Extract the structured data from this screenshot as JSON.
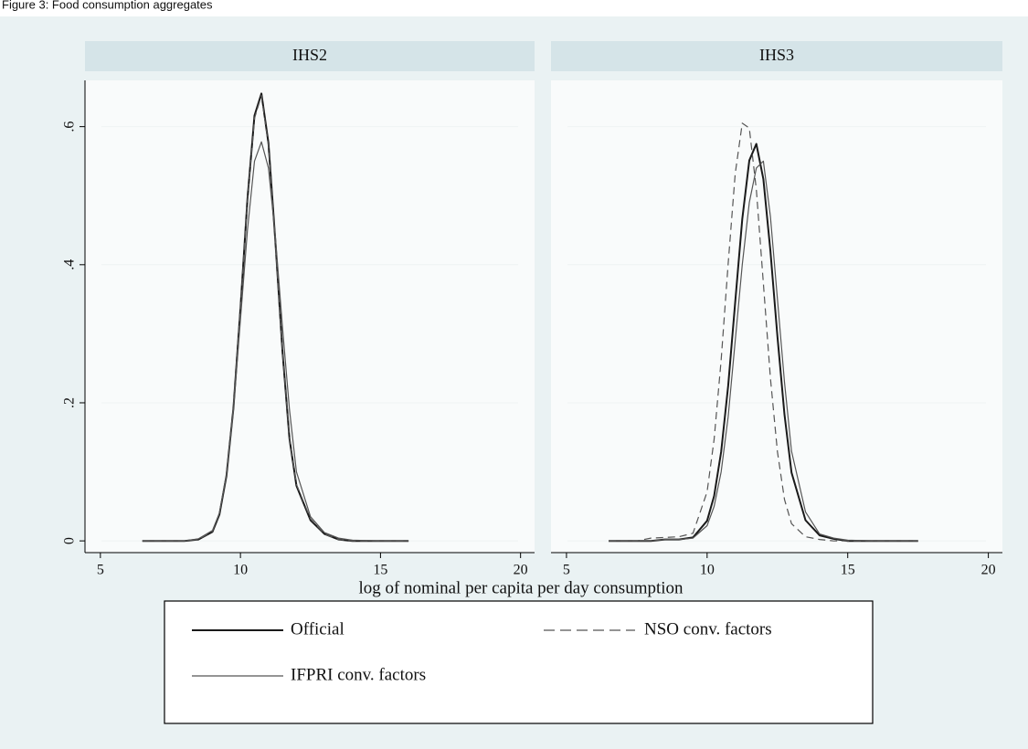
{
  "caption": "Figure 3: Food consumption aggregates",
  "x_label": "log of nominal per capita per day consumption",
  "chart_data": [
    {
      "type": "line",
      "title": "IHS2",
      "x": [
        6.5,
        7,
        7.5,
        8,
        8.5,
        9,
        9.25,
        9.5,
        9.75,
        10,
        10.25,
        10.5,
        10.75,
        11,
        11.25,
        11.5,
        11.75,
        12,
        12.5,
        13,
        13.5,
        14,
        15,
        16
      ],
      "series": [
        {
          "name": "Official",
          "color": "#1a1a1a",
          "width": 2,
          "dashed": false,
          "values": [
            0,
            0,
            0,
            0,
            0.002,
            0.013,
            0.038,
            0.094,
            0.193,
            0.336,
            0.495,
            0.616,
            0.648,
            0.576,
            0.433,
            0.275,
            0.148,
            0.08,
            0.03,
            0.01,
            0.002,
            0,
            0,
            0
          ]
        },
        {
          "name": "IFPRI conv. factors",
          "color": "#555555",
          "width": 1.2,
          "dashed": false,
          "values": [
            0,
            0,
            0,
            0,
            0.003,
            0.015,
            0.04,
            0.095,
            0.19,
            0.32,
            0.45,
            0.55,
            0.578,
            0.54,
            0.44,
            0.31,
            0.19,
            0.1,
            0.035,
            0.012,
            0.004,
            0.001,
            0,
            0
          ]
        },
        {
          "name": "NSO conv. factors",
          "color": "#555555",
          "width": 1.2,
          "dashed": true,
          "values": [
            0,
            0,
            0,
            0,
            0.002,
            0.014,
            0.04,
            0.097,
            0.196,
            0.338,
            0.494,
            0.612,
            0.645,
            0.572,
            0.43,
            0.274,
            0.15,
            0.082,
            0.032,
            0.01,
            0.002,
            0,
            0,
            0
          ]
        }
      ],
      "xlim": [
        4.45,
        20.5
      ],
      "xticks": [
        5,
        10,
        15,
        20
      ],
      "ylim": [
        -0.017,
        0.667
      ],
      "yticks": [
        0,
        {
          "value": 0.2,
          "label": ".2"
        },
        {
          "value": 0.4,
          "label": ".4"
        },
        {
          "value": 0.6,
          "label": ".6"
        }
      ],
      "grid": true
    },
    {
      "type": "line",
      "title": "IHS3",
      "x": [
        6.5,
        7,
        7.5,
        8,
        8.5,
        9,
        9.5,
        10,
        10.25,
        10.5,
        10.75,
        11,
        11.25,
        11.5,
        11.75,
        12,
        12.25,
        12.5,
        12.75,
        13,
        13.5,
        14,
        14.5,
        15,
        16,
        17.5
      ],
      "series": [
        {
          "name": "Official",
          "color": "#1a1a1a",
          "width": 2,
          "dashed": false,
          "values": [
            0,
            0,
            0,
            0,
            0.002,
            0.002,
            0.005,
            0.029,
            0.065,
            0.129,
            0.225,
            0.346,
            0.466,
            0.551,
            0.575,
            0.524,
            0.42,
            0.296,
            0.183,
            0.099,
            0.03,
            0.008,
            0.003,
            0,
            0,
            0
          ]
        },
        {
          "name": "IFPRI conv. factors",
          "color": "#555555",
          "width": 1.2,
          "dashed": false,
          "values": [
            0,
            0,
            0,
            0,
            0.002,
            0.002,
            0.004,
            0.022,
            0.05,
            0.1,
            0.18,
            0.29,
            0.4,
            0.49,
            0.54,
            0.55,
            0.47,
            0.35,
            0.23,
            0.13,
            0.042,
            0.01,
            0.004,
            0.001,
            0,
            0
          ]
        },
        {
          "name": "NSO conv. factors",
          "color": "#555555",
          "width": 1.2,
          "dashed": true,
          "values": [
            0,
            0,
            0,
            0.004,
            0.005,
            0.006,
            0.011,
            0.071,
            0.147,
            0.262,
            0.402,
            0.532,
            0.605,
            0.598,
            0.509,
            0.373,
            0.236,
            0.129,
            0.06,
            0.025,
            0.006,
            0.002,
            0,
            0,
            0,
            0
          ]
        }
      ],
      "xlim": [
        4.45,
        20.5
      ],
      "xticks": [
        5,
        10,
        15,
        20
      ],
      "ylim": [
        -0.017,
        0.667
      ],
      "yticks": [],
      "grid": true
    }
  ]
}
